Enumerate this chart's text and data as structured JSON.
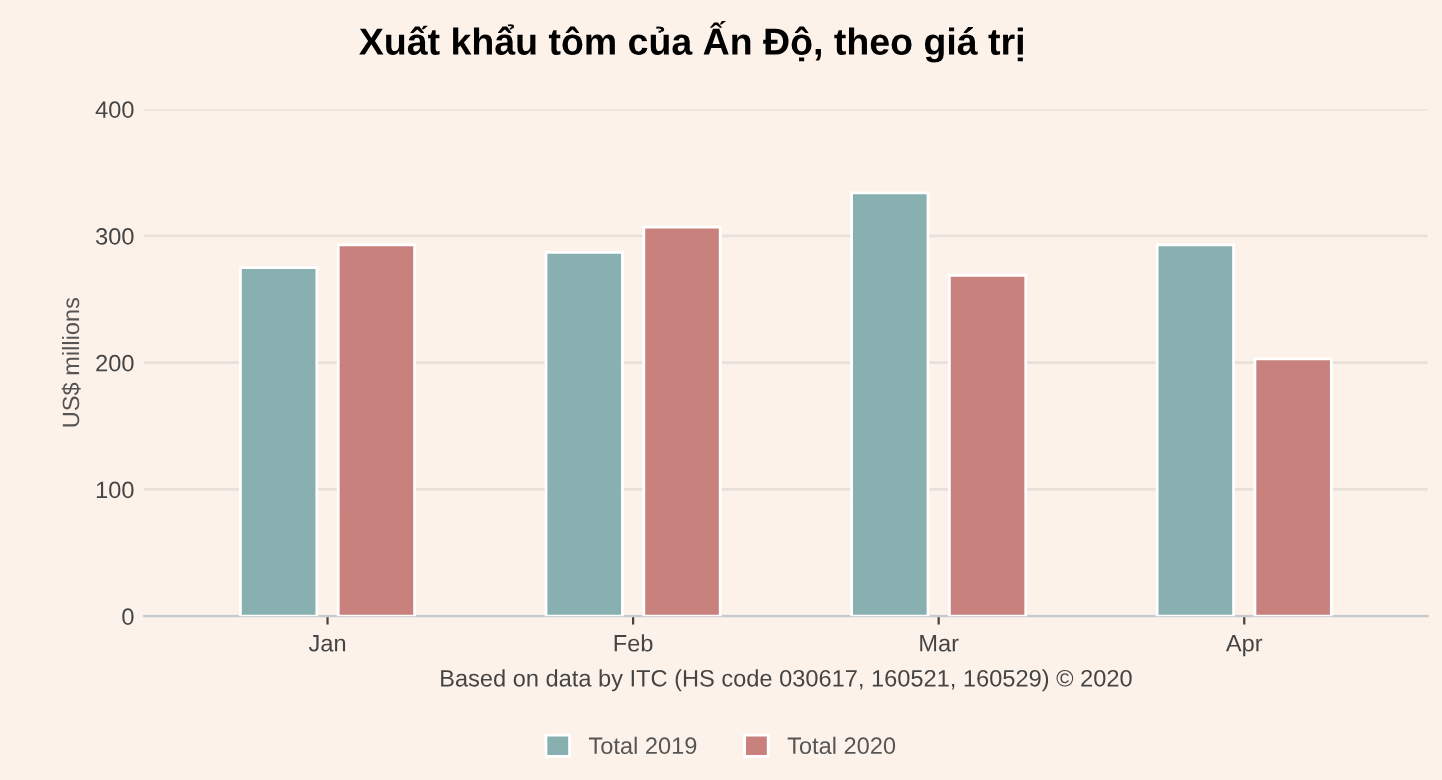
{
  "chart_data": {
    "type": "bar",
    "title": "Xuất khẩu tôm của Ấn Độ, theo giá trị",
    "ylabel": "US$ millions",
    "categories": [
      "Jan",
      "Feb",
      "Mar",
      "Apr"
    ],
    "series": [
      {
        "name": "Total 2019",
        "color": "#88b0b0",
        "values": [
          275,
          287,
          334,
          293
        ]
      },
      {
        "name": "Total 2020",
        "color": "#c9817d",
        "values": [
          293,
          307,
          269,
          203
        ]
      }
    ],
    "ylim": [
      0,
      400
    ],
    "yticks": [
      0,
      100,
      200,
      300,
      400
    ],
    "grid": "y",
    "legend": "bottom",
    "annotations": [
      "Based on data by ITC (HS code 030617, 160521, 160529) © 2020"
    ]
  }
}
